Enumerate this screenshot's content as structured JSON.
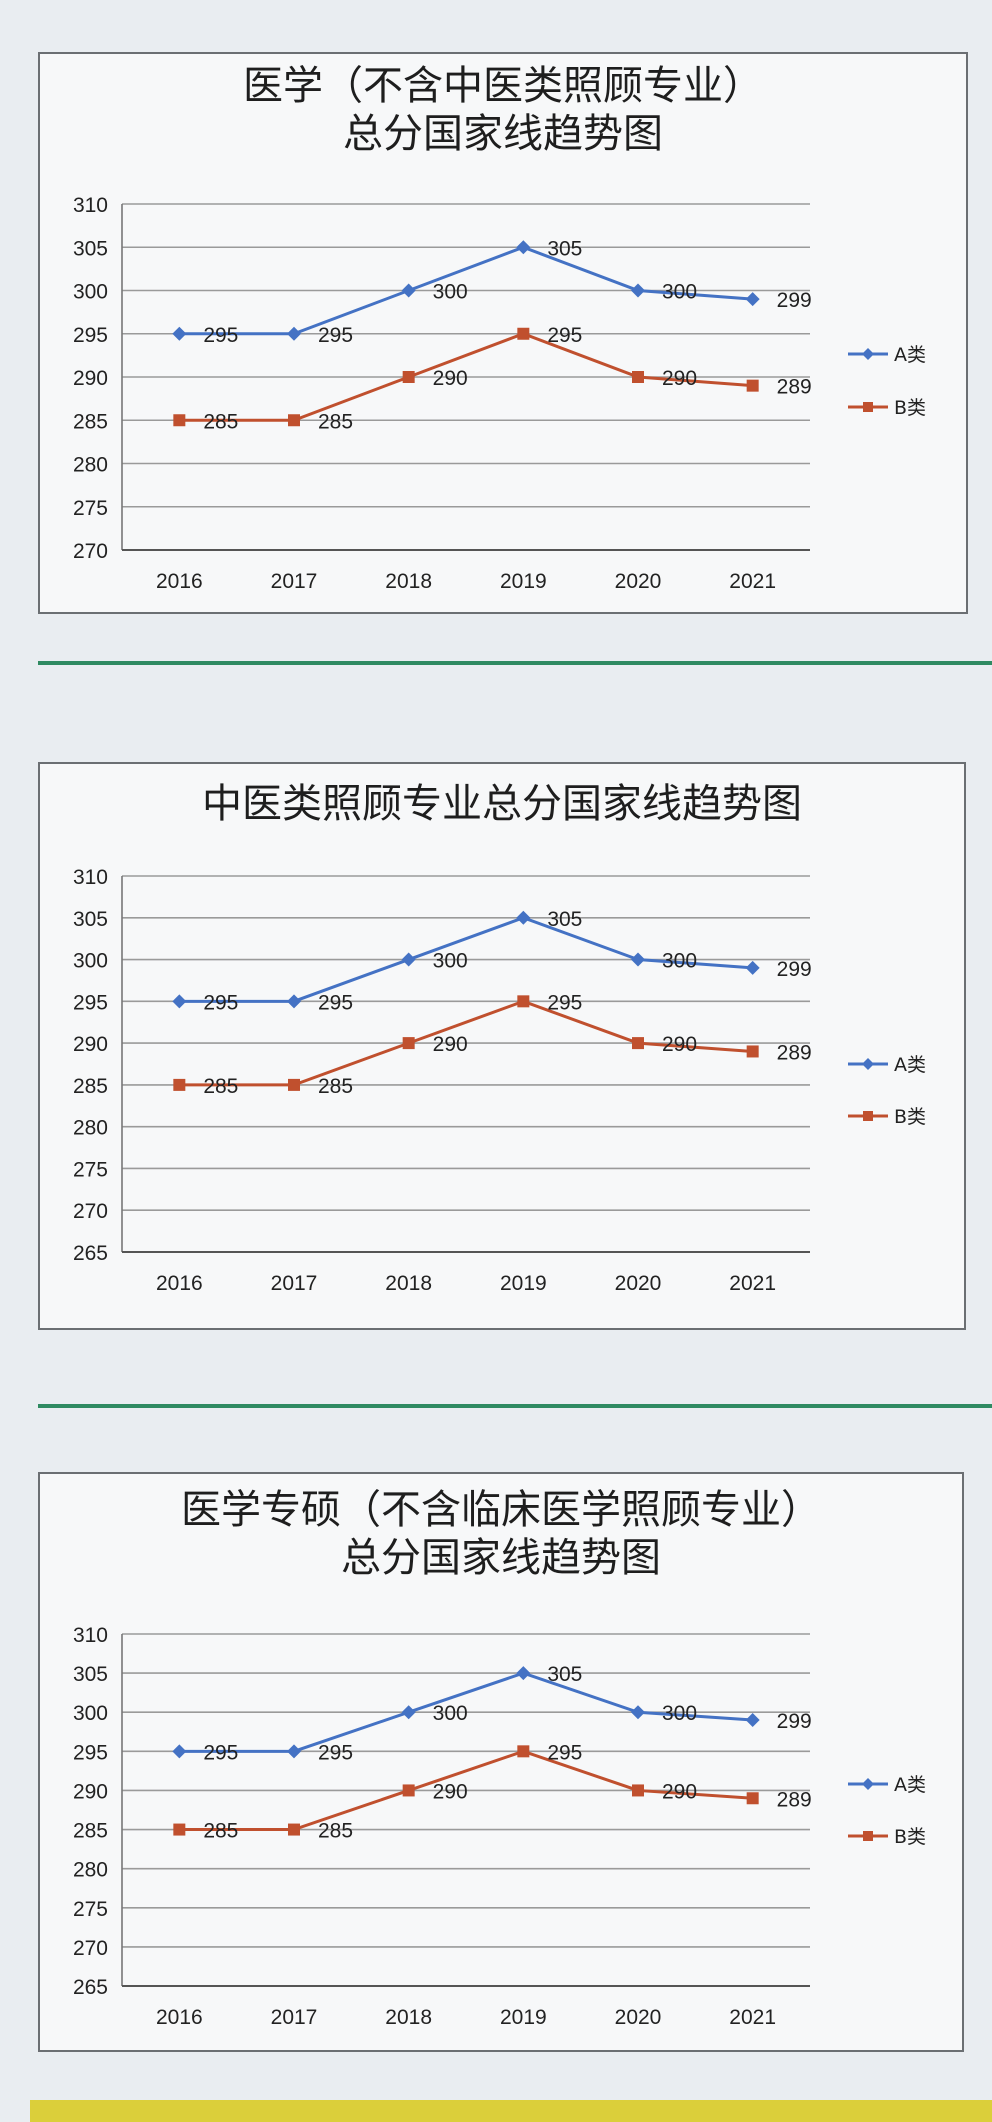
{
  "colors": {
    "series_a": "#4472c4",
    "series_b": "#c0502e",
    "divider": "#2f8a62",
    "band": "#dbcf3a"
  },
  "chart_data": [
    {
      "type": "line",
      "title": [
        "医学（不含中医类照顾专业）",
        "总分国家线趋势图"
      ],
      "categories": [
        "2016",
        "2017",
        "2018",
        "2019",
        "2020",
        "2021"
      ],
      "series": [
        {
          "name": "A类",
          "values": [
            295,
            295,
            300,
            305,
            300,
            299
          ],
          "labels": [
            "295",
            "295",
            "300",
            "305",
            "300",
            "299"
          ]
        },
        {
          "name": "B类",
          "values": [
            285,
            285,
            290,
            295,
            290,
            289
          ],
          "labels": [
            "285",
            "285",
            "290",
            "295",
            "290",
            "289"
          ]
        }
      ],
      "ylim": [
        270,
        310
      ],
      "yticks": [
        "270",
        "275",
        "280",
        "285",
        "290",
        "295",
        "300",
        "305",
        "310"
      ],
      "grid": true,
      "legend": "right"
    },
    {
      "type": "line",
      "title": [
        "中医类照顾专业总分国家线趋势图"
      ],
      "categories": [
        "2016",
        "2017",
        "2018",
        "2019",
        "2020",
        "2021"
      ],
      "series": [
        {
          "name": "A类",
          "values": [
            295,
            295,
            300,
            305,
            300,
            299
          ],
          "labels": [
            "295",
            "295",
            "300",
            "305",
            "300",
            "299"
          ]
        },
        {
          "name": "B类",
          "values": [
            285,
            285,
            290,
            295,
            290,
            289
          ],
          "labels": [
            "285",
            "285",
            "290",
            "295",
            "290",
            "289"
          ]
        }
      ],
      "ylim": [
        265,
        310
      ],
      "yticks": [
        "265",
        "270",
        "275",
        "280",
        "285",
        "290",
        "295",
        "300",
        "305",
        "310"
      ],
      "grid": true,
      "legend": "right"
    },
    {
      "type": "line",
      "title": [
        "医学专硕（不含临床医学照顾专业）",
        "总分国家线趋势图"
      ],
      "categories": [
        "2016",
        "2017",
        "2018",
        "2019",
        "2020",
        "2021"
      ],
      "series": [
        {
          "name": "A类",
          "values": [
            295,
            295,
            300,
            305,
            300,
            299
          ],
          "labels": [
            "295",
            "295",
            "300",
            "305",
            "300",
            "299"
          ]
        },
        {
          "name": "B类",
          "values": [
            285,
            285,
            290,
            295,
            290,
            289
          ],
          "labels": [
            "285",
            "285",
            "290",
            "295",
            "290",
            "289"
          ]
        }
      ],
      "ylim": [
        265,
        310
      ],
      "yticks": [
        "265",
        "270",
        "275",
        "280",
        "285",
        "290",
        "295",
        "300",
        "305",
        "310"
      ],
      "grid": true,
      "legend": "right"
    }
  ]
}
